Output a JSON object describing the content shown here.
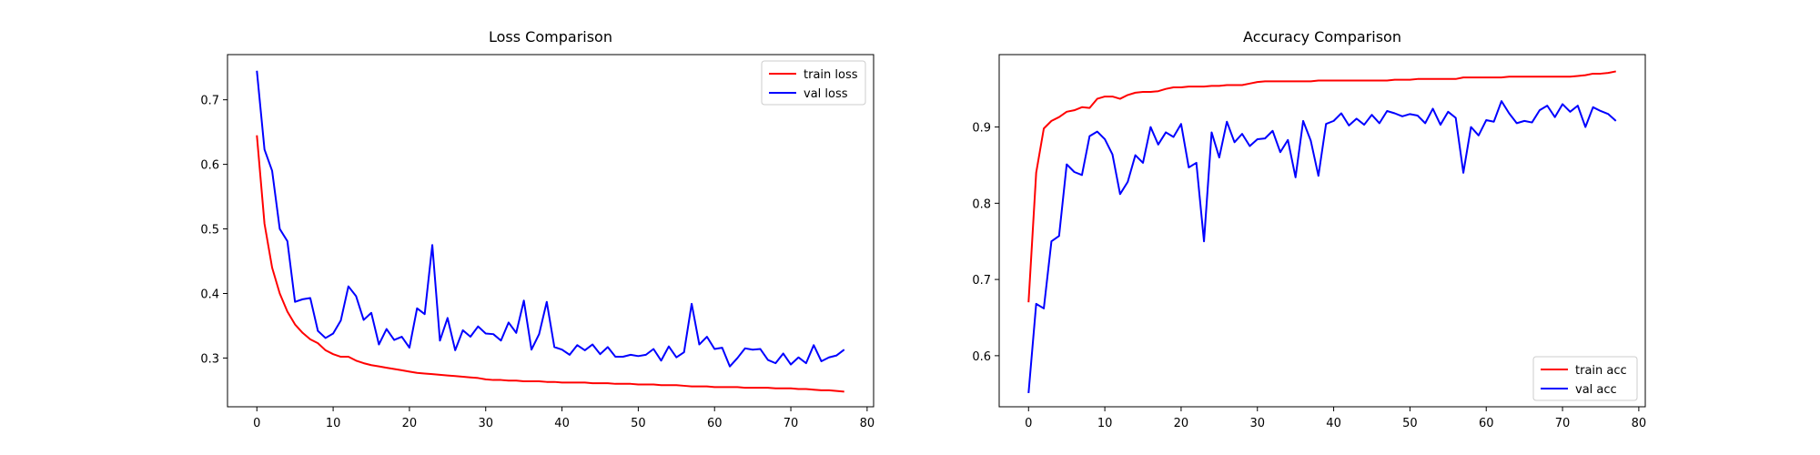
{
  "chart_data": [
    {
      "type": "line",
      "title": "Loss Comparison",
      "xlabel": "",
      "ylabel": "",
      "xlim": [
        -3.85,
        80.85
      ],
      "ylim": [
        0.2245,
        0.77
      ],
      "xticks": [
        0,
        10,
        20,
        30,
        40,
        50,
        60,
        70,
        80
      ],
      "yticks": [
        0.3,
        0.4,
        0.5,
        0.6,
        0.7
      ],
      "xtick_labels": [
        "0",
        "10",
        "20",
        "30",
        "40",
        "50",
        "60",
        "70",
        "80"
      ],
      "ytick_labels": [
        "0.3",
        "0.4",
        "0.5",
        "0.6",
        "0.7"
      ],
      "legend_position": "top-right",
      "series": [
        {
          "name": "train loss",
          "color": "#ff0000",
          "values": [
            0.645,
            0.508,
            0.44,
            0.4,
            0.372,
            0.352,
            0.339,
            0.329,
            0.323,
            0.312,
            0.306,
            0.302,
            0.302,
            0.296,
            0.292,
            0.289,
            0.287,
            0.285,
            0.283,
            0.281,
            0.279,
            0.277,
            0.276,
            0.275,
            0.274,
            0.273,
            0.272,
            0.271,
            0.27,
            0.269,
            0.267,
            0.266,
            0.266,
            0.265,
            0.265,
            0.264,
            0.264,
            0.264,
            0.263,
            0.263,
            0.262,
            0.262,
            0.262,
            0.262,
            0.261,
            0.261,
            0.261,
            0.26,
            0.26,
            0.26,
            0.259,
            0.259,
            0.259,
            0.258,
            0.258,
            0.258,
            0.257,
            0.256,
            0.256,
            0.256,
            0.255,
            0.255,
            0.255,
            0.255,
            0.254,
            0.254,
            0.254,
            0.254,
            0.253,
            0.253,
            0.253,
            0.252,
            0.252,
            0.251,
            0.25,
            0.25,
            0.249,
            0.248
          ]
        },
        {
          "name": "val loss",
          "color": "#0000ff",
          "values": [
            0.745,
            0.623,
            0.59,
            0.5,
            0.481,
            0.387,
            0.391,
            0.393,
            0.342,
            0.331,
            0.338,
            0.358,
            0.411,
            0.396,
            0.359,
            0.37,
            0.321,
            0.345,
            0.328,
            0.333,
            0.316,
            0.377,
            0.368,
            0.475,
            0.327,
            0.362,
            0.312,
            0.343,
            0.333,
            0.349,
            0.338,
            0.337,
            0.327,
            0.355,
            0.339,
            0.389,
            0.313,
            0.337,
            0.387,
            0.317,
            0.313,
            0.305,
            0.32,
            0.312,
            0.321,
            0.306,
            0.317,
            0.302,
            0.302,
            0.305,
            0.303,
            0.305,
            0.314,
            0.296,
            0.318,
            0.301,
            0.309,
            0.384,
            0.321,
            0.333,
            0.314,
            0.316,
            0.287,
            0.3,
            0.315,
            0.313,
            0.314,
            0.297,
            0.292,
            0.307,
            0.29,
            0.301,
            0.292,
            0.32,
            0.295,
            0.301,
            0.304,
            0.313
          ]
        }
      ]
    },
    {
      "type": "line",
      "title": "Accuracy Comparison",
      "xlabel": "",
      "ylabel": "",
      "xlim": [
        -3.85,
        80.85
      ],
      "ylim": [
        0.533,
        0.995
      ],
      "xticks": [
        0,
        10,
        20,
        30,
        40,
        50,
        60,
        70,
        80
      ],
      "yticks": [
        0.6,
        0.7,
        0.8,
        0.9
      ],
      "xtick_labels": [
        "0",
        "10",
        "20",
        "30",
        "40",
        "50",
        "60",
        "70",
        "80"
      ],
      "ytick_labels": [
        "0.6",
        "0.7",
        "0.8",
        "0.9"
      ],
      "legend_position": "bottom-right",
      "series": [
        {
          "name": "train acc",
          "color": "#ff0000",
          "values": [
            0.67,
            0.84,
            0.898,
            0.908,
            0.913,
            0.92,
            0.922,
            0.926,
            0.925,
            0.937,
            0.94,
            0.94,
            0.937,
            0.942,
            0.945,
            0.946,
            0.946,
            0.947,
            0.95,
            0.952,
            0.952,
            0.953,
            0.953,
            0.953,
            0.954,
            0.954,
            0.955,
            0.955,
            0.955,
            0.957,
            0.959,
            0.96,
            0.96,
            0.96,
            0.96,
            0.96,
            0.96,
            0.96,
            0.961,
            0.961,
            0.961,
            0.961,
            0.961,
            0.961,
            0.961,
            0.961,
            0.961,
            0.961,
            0.962,
            0.962,
            0.962,
            0.963,
            0.963,
            0.963,
            0.963,
            0.963,
            0.963,
            0.965,
            0.965,
            0.965,
            0.965,
            0.965,
            0.965,
            0.966,
            0.966,
            0.966,
            0.966,
            0.966,
            0.966,
            0.966,
            0.966,
            0.966,
            0.967,
            0.968,
            0.97,
            0.97,
            0.971,
            0.973
          ]
        },
        {
          "name": "val acc",
          "color": "#0000ff",
          "values": [
            0.551,
            0.668,
            0.662,
            0.75,
            0.757,
            0.851,
            0.841,
            0.837,
            0.888,
            0.894,
            0.884,
            0.864,
            0.812,
            0.828,
            0.863,
            0.853,
            0.9,
            0.877,
            0.893,
            0.887,
            0.904,
            0.847,
            0.853,
            0.75,
            0.893,
            0.86,
            0.907,
            0.88,
            0.891,
            0.875,
            0.884,
            0.885,
            0.895,
            0.867,
            0.883,
            0.834,
            0.908,
            0.882,
            0.836,
            0.904,
            0.908,
            0.918,
            0.902,
            0.911,
            0.903,
            0.916,
            0.905,
            0.921,
            0.918,
            0.914,
            0.917,
            0.915,
            0.905,
            0.924,
            0.903,
            0.92,
            0.912,
            0.84,
            0.9,
            0.889,
            0.909,
            0.907,
            0.934,
            0.918,
            0.905,
            0.908,
            0.906,
            0.922,
            0.928,
            0.913,
            0.93,
            0.92,
            0.928,
            0.9,
            0.926,
            0.921,
            0.917,
            0.908
          ]
        }
      ]
    }
  ]
}
